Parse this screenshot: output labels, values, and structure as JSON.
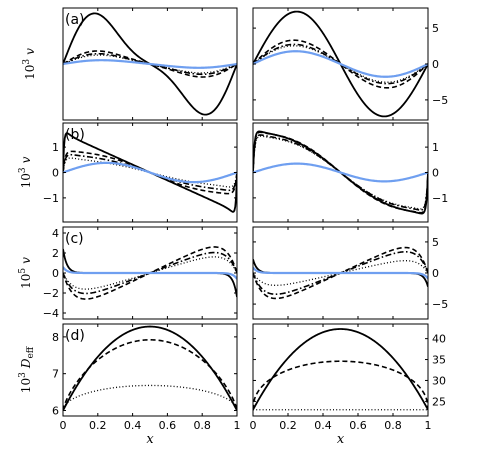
{
  "chart_data": {
    "type": "line",
    "layout": "4 rows x 2 columns of line plots sharing x axis",
    "grid": false,
    "legend": "none",
    "line_styles": [
      "solid",
      "dashed",
      "dotted",
      "dashdot",
      "solid-blue"
    ],
    "colors": {
      "black": "#000000",
      "blue": "#6f9ff0"
    },
    "xlabel": "x",
    "xticks": [
      "0",
      "0.2",
      "0.4",
      "0.6",
      "0.8",
      "1"
    ],
    "xlim": [
      0,
      1
    ],
    "rows": [
      {
        "label": "(a)",
        "ylabel": {
          "prefix": "10",
          "sup": "3",
          "var": "v",
          "sub": ""
        },
        "panels": [
          {
            "ylim": [
              -7.8,
              7.8
            ],
            "ytick_side": "none",
            "yticks": [],
            "series": [
              {
                "style": "solid",
                "kind": "sinharm",
                "amp": 7.3,
                "freq": 1,
                "harm": 0.32
              },
              {
                "style": "dashed",
                "kind": "sinharm",
                "amp": 1.9,
                "freq": 1,
                "harm": 0.2
              },
              {
                "style": "dotted",
                "kind": "sinharm",
                "amp": 1.3,
                "freq": 1,
                "harm": 0.15
              },
              {
                "style": "dashdot",
                "kind": "sinharm",
                "amp": 1.5,
                "freq": 1,
                "harm": 0.18
              },
              {
                "style": "blue",
                "kind": "sinharm",
                "amp": 0.55,
                "freq": 1,
                "harm": 0.1
              }
            ]
          },
          {
            "ylim": [
              -7.8,
              7.8
            ],
            "ytick_side": "right",
            "yticks": [
              5,
              0,
              -5
            ],
            "series": [
              {
                "style": "solid",
                "kind": "sinharm",
                "amp": 7.3,
                "freq": 1,
                "harm": 0
              },
              {
                "style": "dashed",
                "kind": "sinharm",
                "amp": 3.4,
                "freq": 1,
                "harm": 0.05
              },
              {
                "style": "dotted",
                "kind": "sinharm",
                "amp": 2.6,
                "freq": 1,
                "harm": 0.05
              },
              {
                "style": "dashdot",
                "kind": "sinharm",
                "amp": 2.8,
                "freq": 1,
                "harm": 0.05
              },
              {
                "style": "blue",
                "kind": "sinharm",
                "amp": 1.8,
                "freq": 1,
                "harm": 0.02
              }
            ]
          }
        ]
      },
      {
        "label": "(b)",
        "ylabel": {
          "prefix": "10",
          "sup": "3",
          "var": "v",
          "sub": ""
        },
        "panels": [
          {
            "ylim": [
              -1.95,
              1.95
            ],
            "ytick_side": "left",
            "yticks": [
              1,
              0,
              -1
            ],
            "series": [
              {
                "style": "solid",
                "kind": "boundary",
                "a": 1.55,
                "b": 0,
                "k": 40,
                "e": 1.85
              },
              {
                "style": "dashed",
                "kind": "boundary",
                "a": 0.85,
                "b": 0.2,
                "k": 22,
                "e": 0.9
              },
              {
                "style": "dotted",
                "kind": "boundary",
                "a": 0.55,
                "b": 0.1,
                "k": 20,
                "e": 0.7
              },
              {
                "style": "dashdot",
                "kind": "boundary",
                "a": 0.7,
                "b": 0.15,
                "k": 22,
                "e": 0.8
              },
              {
                "style": "blue",
                "kind": "sinharm",
                "amp": 0.38,
                "freq": 1,
                "harm": 0
              }
            ]
          },
          {
            "ylim": [
              -1.95,
              1.95
            ],
            "ytick_side": "right",
            "yticks": [
              1,
              0,
              -1
            ],
            "series": [
              {
                "style": "solid",
                "kind": "boundary",
                "a": 1.6,
                "b": 0.4,
                "k": 30,
                "e": 1.8
              },
              {
                "style": "dashed",
                "kind": "boundary",
                "a": 1.55,
                "b": 0.45,
                "k": 28,
                "e": 1.75
              },
              {
                "style": "dotted",
                "kind": "boundary",
                "a": 1.4,
                "b": 0.4,
                "k": 25,
                "e": 1.6
              },
              {
                "style": "dashdot",
                "kind": "boundary",
                "a": 1.45,
                "b": 0.4,
                "k": 26,
                "e": 1.65
              },
              {
                "style": "blue",
                "kind": "sinharm",
                "amp": 0.35,
                "freq": 1,
                "harm": 0
              }
            ]
          }
        ]
      },
      {
        "label": "(c)",
        "ylabel": {
          "prefix": "10",
          "sup": "5",
          "var": "v",
          "sub": ""
        },
        "panels": [
          {
            "ylim": [
              -4.6,
              4.6
            ],
            "ytick_side": "left",
            "yticks": [
              4,
              2,
              0,
              -2,
              -4
            ],
            "series": [
              {
                "style": "solid",
                "kind": "spike",
                "p": 2.4,
                "k": 45
              },
              {
                "style": "dashed",
                "kind": "ramp",
                "a": 4.2,
                "k": 14
              },
              {
                "style": "dotted",
                "kind": "ramp",
                "a": 2.6,
                "k": 14
              },
              {
                "style": "dashdot",
                "kind": "ramp",
                "a": 3.3,
                "k": 14
              },
              {
                "style": "blue",
                "kind": "spike",
                "p": 0.6,
                "k": 45
              }
            ]
          },
          {
            "ylim": [
              -7.4,
              7.4
            ],
            "ytick_side": "right",
            "yticks": [
              5,
              0,
              -5
            ],
            "series": [
              {
                "style": "solid",
                "kind": "spike",
                "p": 2.2,
                "k": 45
              },
              {
                "style": "dashed",
                "kind": "ramp",
                "a": 6.6,
                "k": 14
              },
              {
                "style": "dotted",
                "kind": "ramp",
                "a": 3.2,
                "k": 14
              },
              {
                "style": "dashdot",
                "kind": "ramp",
                "a": 5.5,
                "k": 14
              },
              {
                "style": "blue",
                "kind": "spike",
                "p": 0.9,
                "k": 45
              }
            ]
          }
        ]
      },
      {
        "label": "(d)",
        "ylabel": {
          "prefix": "10",
          "sup": "3",
          "var": "D",
          "sub": "eff"
        },
        "panels": [
          {
            "ylim": [
              5.85,
              8.35
            ],
            "ytick_side": "left",
            "yticks": [
              8,
              7,
              6
            ],
            "series": [
              {
                "style": "solid",
                "kind": "dome",
                "lo": 6.0,
                "hi": 8.28,
                "p": 1
              },
              {
                "style": "dashed",
                "kind": "dome",
                "lo": 6.0,
                "hi": 7.92,
                "p": 0.75
              },
              {
                "style": "dotted",
                "kind": "dome",
                "lo": 6.0,
                "hi": 6.68,
                "p": 0.5
              }
            ]
          },
          {
            "ylim": [
              21.5,
              43.5
            ],
            "ytick_side": "right",
            "yticks": [
              40,
              35,
              30,
              25
            ],
            "series": [
              {
                "style": "solid",
                "kind": "dome",
                "lo": 23,
                "hi": 42.3,
                "p": 1
              },
              {
                "style": "dashed",
                "kind": "dome",
                "lo": 23,
                "hi": 34.6,
                "p": 0.45
              },
              {
                "style": "dotted",
                "kind": "dome",
                "lo": 23,
                "hi": 23.0,
                "p": 1
              }
            ]
          }
        ]
      }
    ]
  }
}
